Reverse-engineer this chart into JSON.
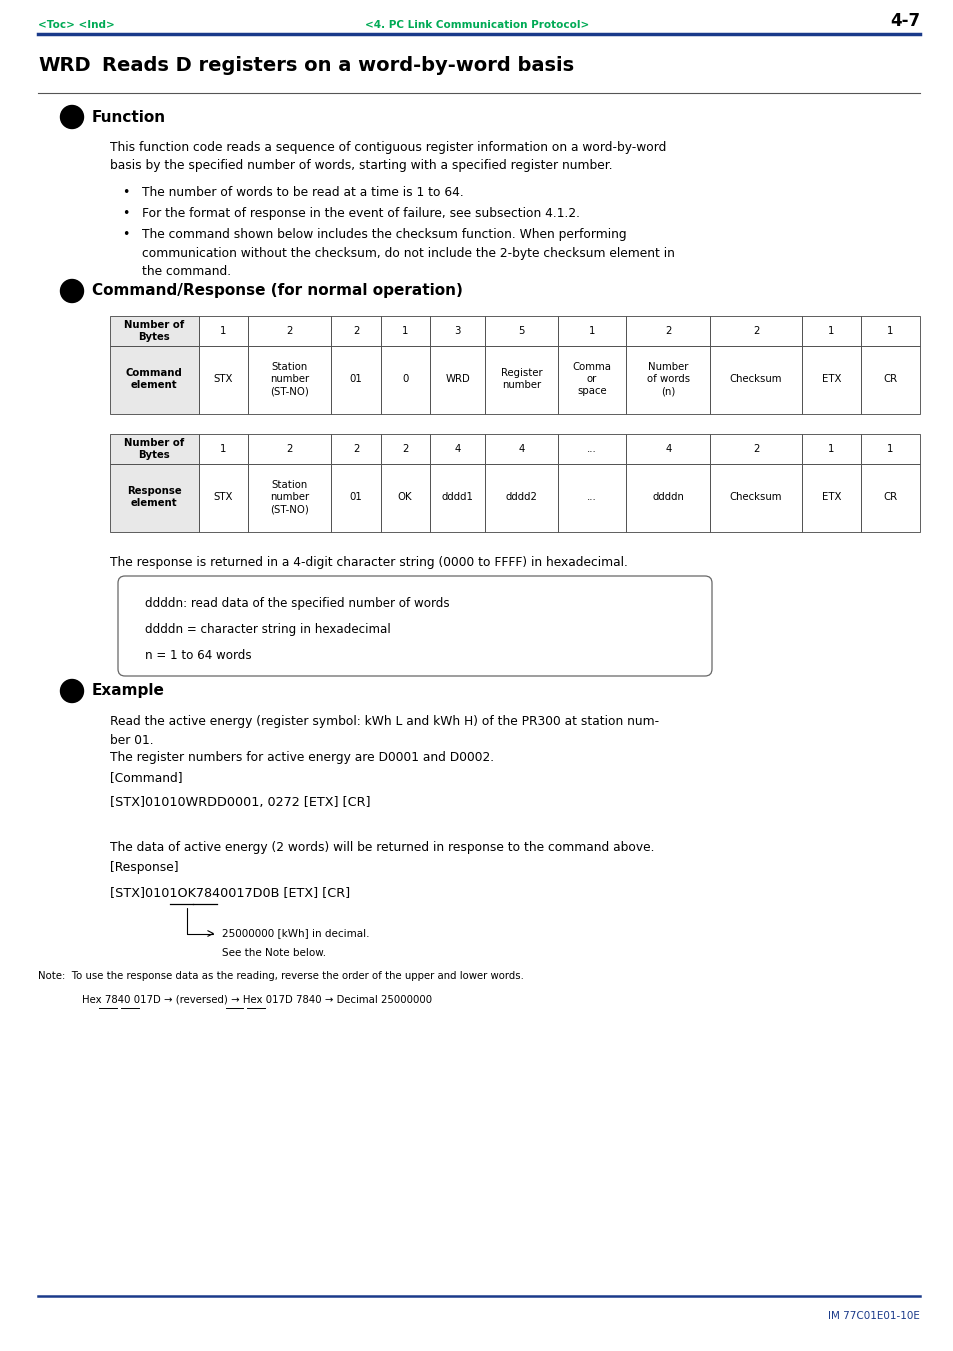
{
  "page_bg": "#ffffff",
  "header_toc": "<Toc> <Ind>",
  "header_center": "<4. PC Link Communication Protocol>",
  "header_right": "4-7",
  "header_color": "#00aa55",
  "rule_color": "#1a3a8a",
  "footer_color": "#1a3a8a",
  "title_wrd": "WRD",
  "title_rest": "Reads D registers on a word-by-word basis",
  "section_function": "Function",
  "section_function_text": "This function code reads a sequence of contiguous register information on a word-by-word\nbasis by the specified number of words, starting with a specified register number.",
  "bullet1": "The number of words to be read at a time is 1 to 64.",
  "bullet2": "For the format of response in the event of failure, see subsection 4.1.2.",
  "bullet3": "The command shown below includes the checksum function. When performing\ncommunication without the checksum, do not include the 2-byte checksum element in\nthe command.",
  "section_cmd": "Command/Response (for normal operation)",
  "cmd_table_headers": [
    "Number of\nBytes",
    "1",
    "2",
    "2",
    "1",
    "3",
    "5",
    "1",
    "2",
    "2",
    "1",
    "1"
  ],
  "cmd_table_row2": [
    "Command\nelement",
    "STX",
    "Station\nnumber\n(ST-NO)",
    "01",
    "0",
    "WRD",
    "Register\nnumber",
    "Comma\nor\nspace",
    "Number\nof words\n(n)",
    "Checksum",
    "ETX",
    "CR"
  ],
  "resp_table_headers": [
    "Number of\nBytes",
    "1",
    "2",
    "2",
    "2",
    "4",
    "4",
    "...",
    "4",
    "2",
    "1",
    "1"
  ],
  "resp_table_row2": [
    "Response\nelement",
    "STX",
    "Station\nnumber\n(ST-NO)",
    "01",
    "OK",
    "dddd1",
    "dddd2",
    "...",
    "ddddn",
    "Checksum",
    "ETX",
    "CR"
  ],
  "response_note": "The response is returned in a 4-digit character string (0000 to FFFF) in hexadecimal.",
  "box_lines": [
    "ddddn: read data of the specified number of words",
    "ddddn = character string in hexadecimal",
    "n = 1 to 64 words"
  ],
  "section_example": "Example",
  "example_text1": "Read the active energy (register symbol: kWh L and kWh H) of the PR300 at station num-\nber 01.",
  "example_text2": "The register numbers for active energy are D0001 and D0002.",
  "example_cmd_label": "[Command]",
  "example_cmd": "[STX]01010WRDD0001, 0272 [ETX] [CR]",
  "example_resp_intro": "The data of active energy (2 words) will be returned in response to the command above.",
  "example_resp_label": "[Response]",
  "example_resp": "[STX]0101OK7840017D0B [ETX] [CR]",
  "arrow_note_line1": "25000000 [kWh] in decimal.",
  "arrow_note_line2": "See the Note below.",
  "note_line1": "Note:  To use the response data as the reading, reverse the order of the upper and lower words.",
  "note_line2": "Hex 7840 017D → (reversed) → Hex 017D 7840 → Decimal 25000000",
  "footer_text": "IM 77C01E01-10E"
}
